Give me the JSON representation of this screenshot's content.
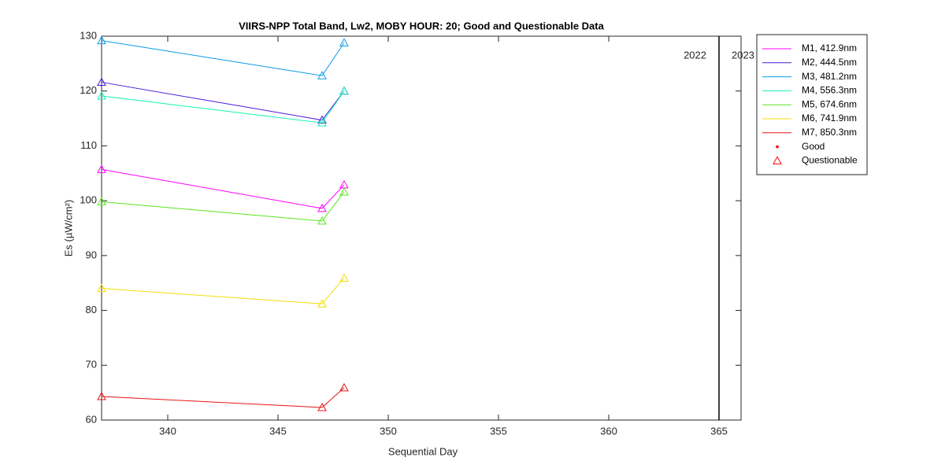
{
  "chart_data": {
    "type": "line",
    "title": "VIIRS-NPP Total Band,  Lw2, MOBY HOUR: 20;  Good and Questionable Data",
    "xlabel": "Sequential Day",
    "ylabel": "Es (µW/cm²)",
    "x": [
      337,
      347,
      348
    ],
    "series": [
      {
        "name": "M1, 412.9nm",
        "color": "#ff00ff",
        "values": [
          105.7,
          98.6,
          102.9
        ]
      },
      {
        "name": "M2, 444.5nm",
        "color": "#4b1ad8",
        "values": [
          121.6,
          114.7,
          120.0
        ]
      },
      {
        "name": "M3, 481.2nm",
        "color": "#0a9be6",
        "values": [
          129.2,
          122.8,
          128.8
        ]
      },
      {
        "name": "M4, 556.3nm",
        "color": "#14f0b4",
        "values": [
          119.1,
          114.2,
          120.0
        ]
      },
      {
        "name": "M5, 674.6nm",
        "color": "#5ae61e",
        "values": [
          99.8,
          96.3,
          101.6
        ]
      },
      {
        "name": "M6, 741.9nm",
        "color": "#f5dc0a",
        "values": [
          84.0,
          81.2,
          85.9
        ]
      },
      {
        "name": "M7, 850.3nm",
        "color": "#e61414",
        "values": [
          64.3,
          62.3,
          65.9
        ]
      }
    ],
    "legend_markers": [
      {
        "name": "Good",
        "marker": "dot",
        "color": "#ff0000"
      },
      {
        "name": "Questionable",
        "marker": "triangle",
        "color": "#ff0000"
      }
    ],
    "divider_x": 365,
    "annotations": [
      "2022",
      "2023"
    ],
    "xlim": [
      337,
      366
    ],
    "ylim": [
      60,
      130
    ],
    "xticks": [
      340,
      345,
      350,
      355,
      360,
      365
    ],
    "yticks": [
      60,
      70,
      80,
      90,
      100,
      110,
      120,
      130
    ],
    "grid": false,
    "legend": "outside-right"
  }
}
